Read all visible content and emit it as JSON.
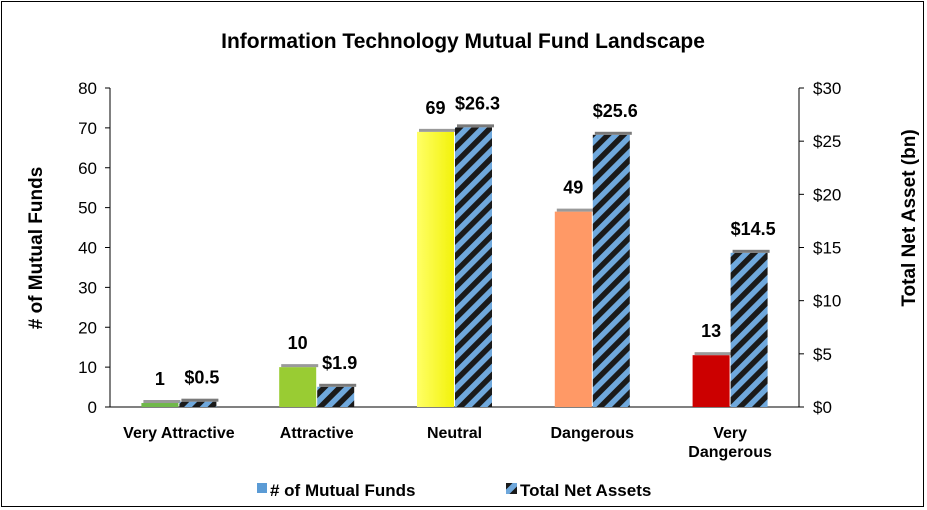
{
  "chart_data": {
    "type": "bar",
    "title": "Information Technology Mutual Fund Landscape",
    "ylabel": "# of Mutual Funds",
    "y2label": "Total Net Asset (bn)",
    "ylim": [
      0,
      80
    ],
    "y2lim": [
      0,
      30
    ],
    "yticks": [
      "0",
      "10",
      "20",
      "30",
      "40",
      "50",
      "60",
      "70",
      "80"
    ],
    "y2ticks": [
      "$0",
      "$5",
      "$10",
      "$15",
      "$20",
      "$25",
      "$30"
    ],
    "categories": [
      [
        "Very Attractive"
      ],
      [
        "Attractive"
      ],
      [
        "Neutral"
      ],
      [
        "Dangerous"
      ],
      [
        "Very",
        "Dangerous"
      ]
    ],
    "series": [
      {
        "name": "# of Mutual Funds",
        "axis": "left",
        "values": [
          1,
          10,
          69,
          49,
          13
        ],
        "labels": [
          "1",
          "10",
          "69",
          "49",
          "13"
        ],
        "colors": [
          "#70b84a",
          "#99cc33",
          "#ffff33",
          "#ff9966",
          "#cc0000"
        ],
        "legend_color": "#5b9bd5"
      },
      {
        "name": "Total Net Assets",
        "axis": "right",
        "values": [
          0.5,
          1.9,
          26.3,
          25.6,
          14.5
        ],
        "labels": [
          "$0.5",
          "$1.9",
          "$26.3",
          "$25.6",
          "$14.5"
        ],
        "pattern": "diagonal-stripes",
        "colors": [
          "#1a1a1a",
          "#6fa8dc"
        ]
      }
    ],
    "legend_position": "bottom",
    "grid": false
  }
}
